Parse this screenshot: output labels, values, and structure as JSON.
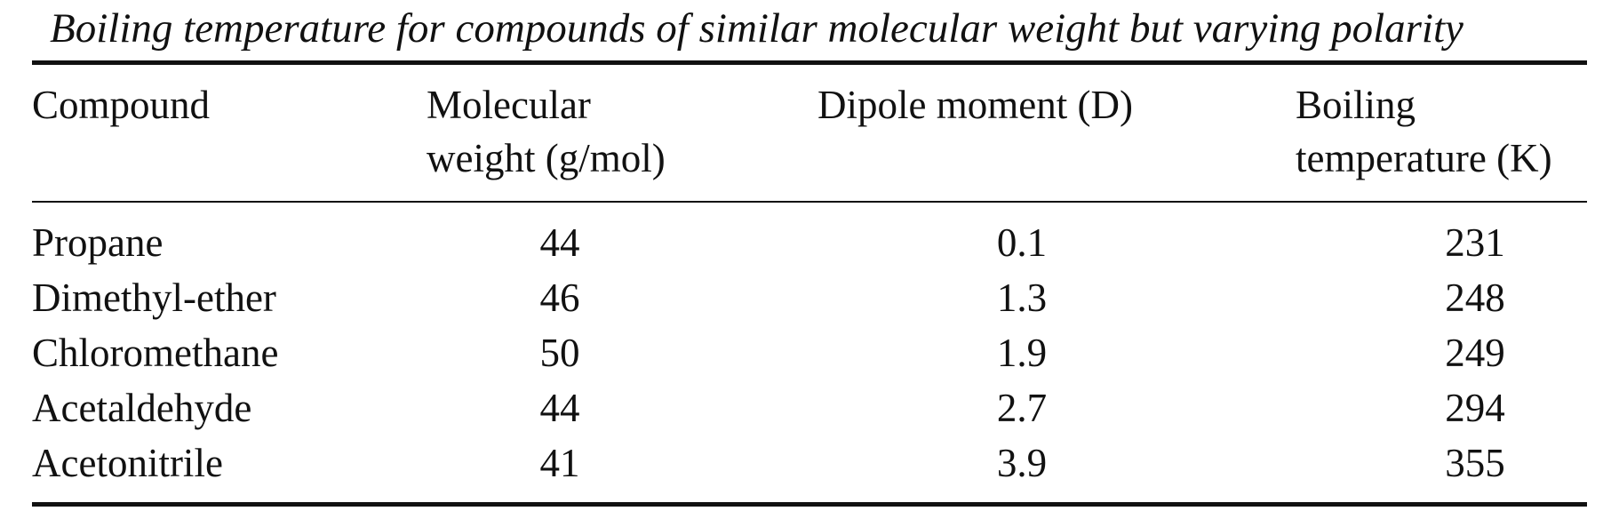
{
  "caption": "Boiling temperature for compounds of similar molecular weight but varying polarity",
  "columns": [
    {
      "line1": "Compound",
      "line2": ""
    },
    {
      "line1": "Molecular",
      "line2": "weight (g/mol)"
    },
    {
      "line1": "Dipole moment (D)",
      "line2": ""
    },
    {
      "line1": "Boiling",
      "line2": "temperature (K)"
    }
  ],
  "rows": [
    {
      "compound": "Propane",
      "mw": "44",
      "dipole": "0.1",
      "bp": "231"
    },
    {
      "compound": "Dimethyl-ether",
      "mw": "46",
      "dipole": "1.3",
      "bp": "248"
    },
    {
      "compound": "Chloromethane",
      "mw": "50",
      "dipole": "1.9",
      "bp": "249"
    },
    {
      "compound": "Acetaldehyde",
      "mw": "44",
      "dipole": "2.7",
      "bp": "294"
    },
    {
      "compound": "Acetonitrile",
      "mw": "41",
      "dipole": "3.9",
      "bp": "355"
    }
  ]
}
